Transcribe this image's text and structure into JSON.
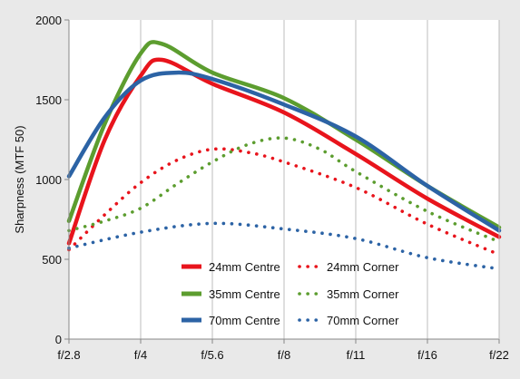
{
  "chart_data": {
    "type": "line",
    "title": "",
    "xlabel": "",
    "ylabel": "Sharpness  (MTF 50)",
    "categories": [
      "f/2.8",
      "f/4",
      "f/5.6",
      "f/8",
      "f/11",
      "f/16",
      "f/22"
    ],
    "ylim": [
      0,
      2000
    ],
    "yticks": [
      0,
      500,
      1000,
      1500,
      2000
    ],
    "grid": "vertical",
    "legend_position": "bottom-center",
    "series": [
      {
        "name": "24mm Centre",
        "style": "solid",
        "color": "#e8141c",
        "x": [
          0,
          0.5,
          1.0,
          1.3,
          2.0,
          3.0,
          4.0,
          5.0,
          6.0
        ],
        "values": [
          600,
          1250,
          1650,
          1750,
          1600,
          1420,
          1160,
          880,
          640
        ]
      },
      {
        "name": "24mm Corner",
        "style": "dotted",
        "color": "#e8141c",
        "x": [
          0,
          0.5,
          1.0,
          1.5,
          2.0,
          2.5,
          3.0,
          4.0,
          5.0,
          6.0
        ],
        "values": [
          560,
          780,
          980,
          1120,
          1190,
          1170,
          1110,
          950,
          720,
          530
        ]
      },
      {
        "name": "35mm Centre",
        "style": "solid",
        "color": "#5c9d2f",
        "x": [
          0,
          0.5,
          1.0,
          1.3,
          2.0,
          3.0,
          4.0,
          5.0,
          6.0
        ],
        "values": [
          740,
          1350,
          1790,
          1850,
          1670,
          1510,
          1250,
          960,
          700
        ]
      },
      {
        "name": "35mm Corner",
        "style": "dotted",
        "color": "#5c9d2f",
        "x": [
          0,
          0.5,
          1.0,
          1.5,
          2.0,
          2.5,
          3.0,
          3.5,
          4.0,
          5.0,
          6.0
        ],
        "values": [
          680,
          740,
          820,
          970,
          1110,
          1220,
          1260,
          1190,
          1050,
          800,
          610
        ]
      },
      {
        "name": "70mm Centre",
        "style": "solid",
        "color": "#2c63a5",
        "x": [
          0,
          0.5,
          1.0,
          1.5,
          2.0,
          3.0,
          4.0,
          5.0,
          6.0
        ],
        "values": [
          1020,
          1390,
          1620,
          1670,
          1630,
          1470,
          1270,
          960,
          680
        ]
      },
      {
        "name": "70mm Corner",
        "style": "dotted",
        "color": "#2c63a5",
        "x": [
          0,
          1.0,
          2.0,
          3.0,
          4.0,
          5.0,
          6.0
        ],
        "values": [
          570,
          670,
          725,
          690,
          630,
          510,
          440
        ]
      }
    ]
  }
}
